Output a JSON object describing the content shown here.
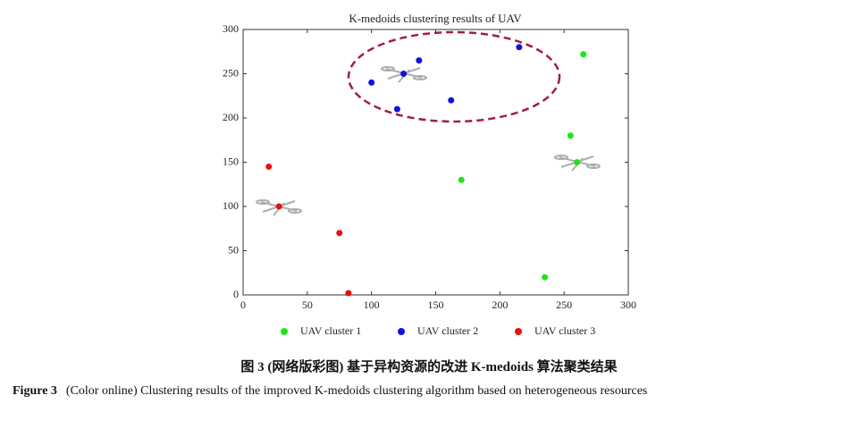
{
  "chart_data": {
    "type": "scatter",
    "title": "K-medoids clustering results of  UAV",
    "series": [
      {
        "name": "UAV cluster 1",
        "color": "#19e619",
        "x": [
          265,
          255,
          260,
          170,
          235
        ],
        "values": [
          272,
          180,
          150,
          130,
          20
        ]
      },
      {
        "name": "UAV cluster 2",
        "color": "#1010e6",
        "x": [
          215,
          137,
          125,
          100,
          162,
          120
        ],
        "values": [
          280,
          265,
          250,
          240,
          220,
          210
        ]
      },
      {
        "name": "UAV cluster 3",
        "color": "#e61010",
        "x": [
          20,
          28,
          75,
          82
        ],
        "values": [
          145,
          100,
          70,
          2
        ]
      }
    ],
    "xlim": [
      0,
      300
    ],
    "ylim": [
      0,
      300
    ],
    "xticks": [
      0,
      50,
      100,
      150,
      200,
      250,
      300
    ],
    "yticks": [
      0,
      50,
      100,
      150,
      200,
      250,
      300
    ],
    "legend": "bottom"
  },
  "caption_cn": "图 3   (网络版彩图) 基于异构资源的改进 K-medoids 算法聚类结果",
  "figure_label": "Figure 3",
  "caption": "(Color online) Clustering results of the improved K-medoids clustering algorithm based on heterogeneous resources"
}
